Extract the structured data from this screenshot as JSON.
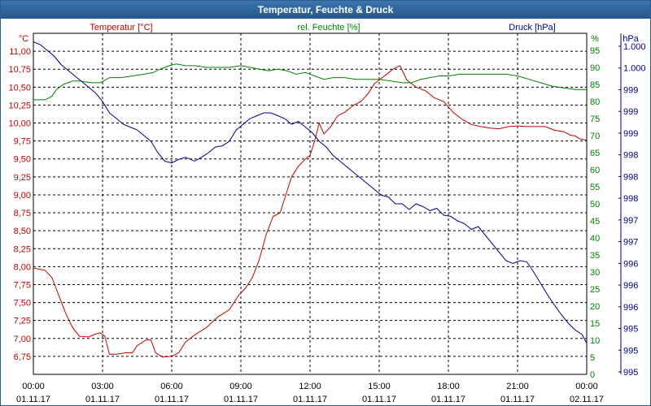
{
  "window": {
    "title": "Temperatur, Feuchte & Druck"
  },
  "colors": {
    "temperature": "#c00000",
    "humidity": "#008000",
    "pressure": "#00008b",
    "titlebar": "#2d64a0"
  },
  "chart_data": {
    "type": "line",
    "title": "Temperatur, Feuchte & Druck",
    "x_ticks": [
      {
        "time": "00:00",
        "date": "01.11.17"
      },
      {
        "time": "03:00",
        "date": "01.11.17"
      },
      {
        "time": "06:00",
        "date": "01.11.17"
      },
      {
        "time": "09:00",
        "date": "01.11.17"
      },
      {
        "time": "12:00",
        "date": "01.11.17"
      },
      {
        "time": "15:00",
        "date": "01.11.17"
      },
      {
        "time": "18:00",
        "date": "01.11.17"
      },
      {
        "time": "21:00",
        "date": "01.11.17"
      },
      {
        "time": "00:00",
        "date": "02.11.17"
      }
    ],
    "x_range_hours": [
      0,
      24
    ],
    "axes": {
      "temperature": {
        "label": "Temperatur [°C]",
        "unit": "°C",
        "range": [
          6.5,
          11.25
        ],
        "ticks": [
          "11,00",
          "10,75",
          "10,50",
          "10,25",
          "10,00",
          "9,75",
          "9,50",
          "9,25",
          "9,00",
          "8,75",
          "8,50",
          "8,25",
          "8,00",
          "7,75",
          "7,50",
          "7,25",
          "7,00",
          "6,75"
        ]
      },
      "humidity": {
        "label": "rel. Feuchte [%]",
        "unit": "%",
        "range": [
          0,
          100
        ],
        "ticks": [
          "95",
          "90",
          "85",
          "80",
          "75",
          "70",
          "65",
          "60",
          "55",
          "50",
          "45",
          "40",
          "35",
          "30",
          "25",
          "20",
          "15",
          "10",
          "5",
          "0"
        ]
      },
      "pressure": {
        "label": "Druck [hPa]",
        "unit": "hPa",
        "range": [
          994.6,
          1000.6
        ],
        "ticks": [
          "1.000",
          "1.000",
          "999",
          "999",
          "999",
          "998",
          "998",
          "998",
          "997",
          "997",
          "996",
          "996",
          "996",
          "995",
          "995",
          "995"
        ]
      }
    },
    "series": [
      {
        "name": "Temperatur",
        "axis": "temperature",
        "color": "#c00000",
        "points": [
          [
            0,
            7.98
          ],
          [
            0.5,
            7.95
          ],
          [
            0.8,
            7.85
          ],
          [
            1.1,
            7.6
          ],
          [
            1.4,
            7.35
          ],
          [
            1.7,
            7.15
          ],
          [
            2.0,
            7.03
          ],
          [
            2.4,
            7.02
          ],
          [
            2.6,
            7.05
          ],
          [
            2.9,
            7.08
          ],
          [
            3.1,
            7.03
          ],
          [
            3.3,
            6.78
          ],
          [
            3.6,
            6.78
          ],
          [
            4.0,
            6.8
          ],
          [
            4.3,
            6.8
          ],
          [
            4.5,
            6.9
          ],
          [
            4.9,
            6.98
          ],
          [
            5.1,
            6.98
          ],
          [
            5.3,
            6.8
          ],
          [
            5.6,
            6.74
          ],
          [
            6.0,
            6.75
          ],
          [
            6.3,
            6.8
          ],
          [
            6.6,
            6.95
          ],
          [
            7.0,
            7.05
          ],
          [
            7.5,
            7.15
          ],
          [
            8.0,
            7.3
          ],
          [
            8.5,
            7.4
          ],
          [
            8.9,
            7.6
          ],
          [
            9.2,
            7.7
          ],
          [
            9.5,
            7.85
          ],
          [
            9.8,
            8.1
          ],
          [
            10.1,
            8.45
          ],
          [
            10.4,
            8.7
          ],
          [
            10.7,
            8.75
          ],
          [
            11.0,
            9.05
          ],
          [
            11.2,
            9.25
          ],
          [
            11.5,
            9.4
          ],
          [
            11.8,
            9.5
          ],
          [
            12.0,
            9.55
          ],
          [
            12.2,
            9.75
          ],
          [
            12.4,
            10.0
          ],
          [
            12.6,
            9.85
          ],
          [
            12.9,
            9.95
          ],
          [
            13.2,
            10.1
          ],
          [
            13.5,
            10.15
          ],
          [
            13.9,
            10.25
          ],
          [
            14.2,
            10.3
          ],
          [
            14.5,
            10.4
          ],
          [
            14.8,
            10.55
          ],
          [
            15.2,
            10.65
          ],
          [
            15.6,
            10.75
          ],
          [
            15.9,
            10.8
          ],
          [
            16.2,
            10.6
          ],
          [
            16.6,
            10.5
          ],
          [
            17.0,
            10.45
          ],
          [
            17.4,
            10.35
          ],
          [
            17.8,
            10.3
          ],
          [
            18.2,
            10.15
          ],
          [
            18.6,
            10.05
          ],
          [
            19.0,
            9.98
          ],
          [
            19.4,
            9.95
          ],
          [
            19.8,
            9.93
          ],
          [
            20.2,
            9.92
          ],
          [
            20.6,
            9.95
          ],
          [
            21.0,
            9.96
          ],
          [
            21.4,
            9.95
          ],
          [
            21.8,
            9.95
          ],
          [
            22.2,
            9.95
          ],
          [
            22.6,
            9.9
          ],
          [
            23.0,
            9.88
          ],
          [
            23.3,
            9.83
          ],
          [
            23.5,
            9.82
          ],
          [
            23.7,
            9.78
          ],
          [
            24.0,
            9.76
          ]
        ]
      },
      {
        "name": "rel. Feuchte",
        "axis": "humidity",
        "color": "#008000",
        "points": [
          [
            0,
            80.5
          ],
          [
            0.5,
            80.5
          ],
          [
            0.8,
            81.5
          ],
          [
            1.0,
            83.5
          ],
          [
            1.3,
            85.0
          ],
          [
            1.7,
            86.0
          ],
          [
            2.0,
            86.0
          ],
          [
            2.5,
            85.5
          ],
          [
            2.9,
            85.5
          ],
          [
            3.3,
            87.0
          ],
          [
            3.8,
            87.0
          ],
          [
            4.3,
            87.5
          ],
          [
            4.8,
            88.0
          ],
          [
            5.2,
            88.5
          ],
          [
            5.5,
            89.5
          ],
          [
            5.9,
            90.5
          ],
          [
            6.2,
            91.0
          ],
          [
            6.6,
            90.5
          ],
          [
            7.0,
            90.5
          ],
          [
            7.5,
            90.0
          ],
          [
            8.0,
            90.0
          ],
          [
            8.5,
            90.0
          ],
          [
            9.0,
            90.5
          ],
          [
            9.4,
            90.0
          ],
          [
            9.8,
            89.5
          ],
          [
            10.2,
            89.0
          ],
          [
            10.6,
            89.5
          ],
          [
            11.0,
            89.0
          ],
          [
            11.4,
            88.0
          ],
          [
            11.8,
            88.5
          ],
          [
            12.2,
            87.5
          ],
          [
            12.6,
            86.5
          ],
          [
            13.0,
            87.0
          ],
          [
            13.5,
            87.0
          ],
          [
            14.0,
            86.5
          ],
          [
            14.5,
            86.5
          ],
          [
            15.0,
            86.5
          ],
          [
            15.5,
            86.0
          ],
          [
            16.0,
            85.5
          ],
          [
            16.4,
            85.5
          ],
          [
            16.8,
            86.5
          ],
          [
            17.2,
            87.0
          ],
          [
            17.6,
            87.5
          ],
          [
            18.0,
            87.5
          ],
          [
            18.5,
            88.0
          ],
          [
            19.0,
            88.0
          ],
          [
            19.5,
            88.0
          ],
          [
            20.0,
            88.0
          ],
          [
            20.5,
            88.0
          ],
          [
            21.0,
            87.5
          ],
          [
            21.5,
            86.5
          ],
          [
            22.0,
            85.5
          ],
          [
            22.5,
            84.5
          ],
          [
            23.0,
            84.0
          ],
          [
            23.5,
            83.5
          ],
          [
            24.0,
            83.5
          ]
        ]
      },
      {
        "name": "Druck",
        "axis": "pressure",
        "color": "#00008b",
        "points": [
          [
            0,
            1000.45
          ],
          [
            0.3,
            1000.4
          ],
          [
            0.6,
            1000.3
          ],
          [
            0.9,
            1000.2
          ],
          [
            1.2,
            1000.05
          ],
          [
            1.5,
            999.95
          ],
          [
            1.8,
            999.85
          ],
          [
            2.1,
            999.75
          ],
          [
            2.4,
            999.65
          ],
          [
            2.7,
            999.55
          ],
          [
            3.0,
            999.4
          ],
          [
            3.3,
            999.2
          ],
          [
            3.6,
            999.1
          ],
          [
            3.9,
            999.0
          ],
          [
            4.2,
            998.95
          ],
          [
            4.5,
            998.9
          ],
          [
            4.8,
            998.8
          ],
          [
            5.1,
            998.7
          ],
          [
            5.4,
            998.5
          ],
          [
            5.7,
            998.35
          ],
          [
            6.0,
            998.32
          ],
          [
            6.3,
            998.38
          ],
          [
            6.6,
            998.42
          ],
          [
            7.0,
            998.35
          ],
          [
            7.3,
            998.42
          ],
          [
            7.6,
            998.5
          ],
          [
            7.9,
            998.6
          ],
          [
            8.2,
            998.62
          ],
          [
            8.5,
            998.7
          ],
          [
            8.8,
            998.9
          ],
          [
            9.1,
            999.0
          ],
          [
            9.4,
            999.1
          ],
          [
            9.7,
            999.15
          ],
          [
            10.0,
            999.2
          ],
          [
            10.3,
            999.2
          ],
          [
            10.6,
            999.15
          ],
          [
            10.9,
            999.1
          ],
          [
            11.2,
            999.0
          ],
          [
            11.5,
            999.05
          ],
          [
            11.8,
            998.95
          ],
          [
            12.1,
            998.85
          ],
          [
            12.4,
            998.7
          ],
          [
            12.7,
            998.6
          ],
          [
            13.0,
            998.45
          ],
          [
            13.3,
            998.35
          ],
          [
            13.6,
            998.25
          ],
          [
            13.9,
            998.15
          ],
          [
            14.2,
            998.05
          ],
          [
            14.5,
            997.95
          ],
          [
            14.8,
            997.85
          ],
          [
            15.1,
            997.75
          ],
          [
            15.4,
            997.72
          ],
          [
            15.7,
            997.6
          ],
          [
            16.0,
            997.6
          ],
          [
            16.3,
            997.5
          ],
          [
            16.6,
            997.6
          ],
          [
            16.9,
            997.55
          ],
          [
            17.2,
            997.48
          ],
          [
            17.5,
            997.52
          ],
          [
            17.8,
            997.4
          ],
          [
            18.1,
            997.38
          ],
          [
            18.4,
            997.3
          ],
          [
            18.7,
            997.25
          ],
          [
            19.0,
            997.15
          ],
          [
            19.3,
            997.2
          ],
          [
            19.6,
            997.05
          ],
          [
            19.9,
            996.9
          ],
          [
            20.2,
            996.75
          ],
          [
            20.5,
            996.6
          ],
          [
            20.8,
            996.55
          ],
          [
            21.1,
            996.6
          ],
          [
            21.4,
            996.58
          ],
          [
            21.7,
            996.4
          ],
          [
            22.0,
            996.2
          ],
          [
            22.3,
            996.0
          ],
          [
            22.6,
            995.82
          ],
          [
            22.9,
            995.65
          ],
          [
            23.2,
            995.5
          ],
          [
            23.5,
            995.38
          ],
          [
            23.8,
            995.3
          ],
          [
            24.0,
            995.15
          ]
        ]
      }
    ]
  }
}
